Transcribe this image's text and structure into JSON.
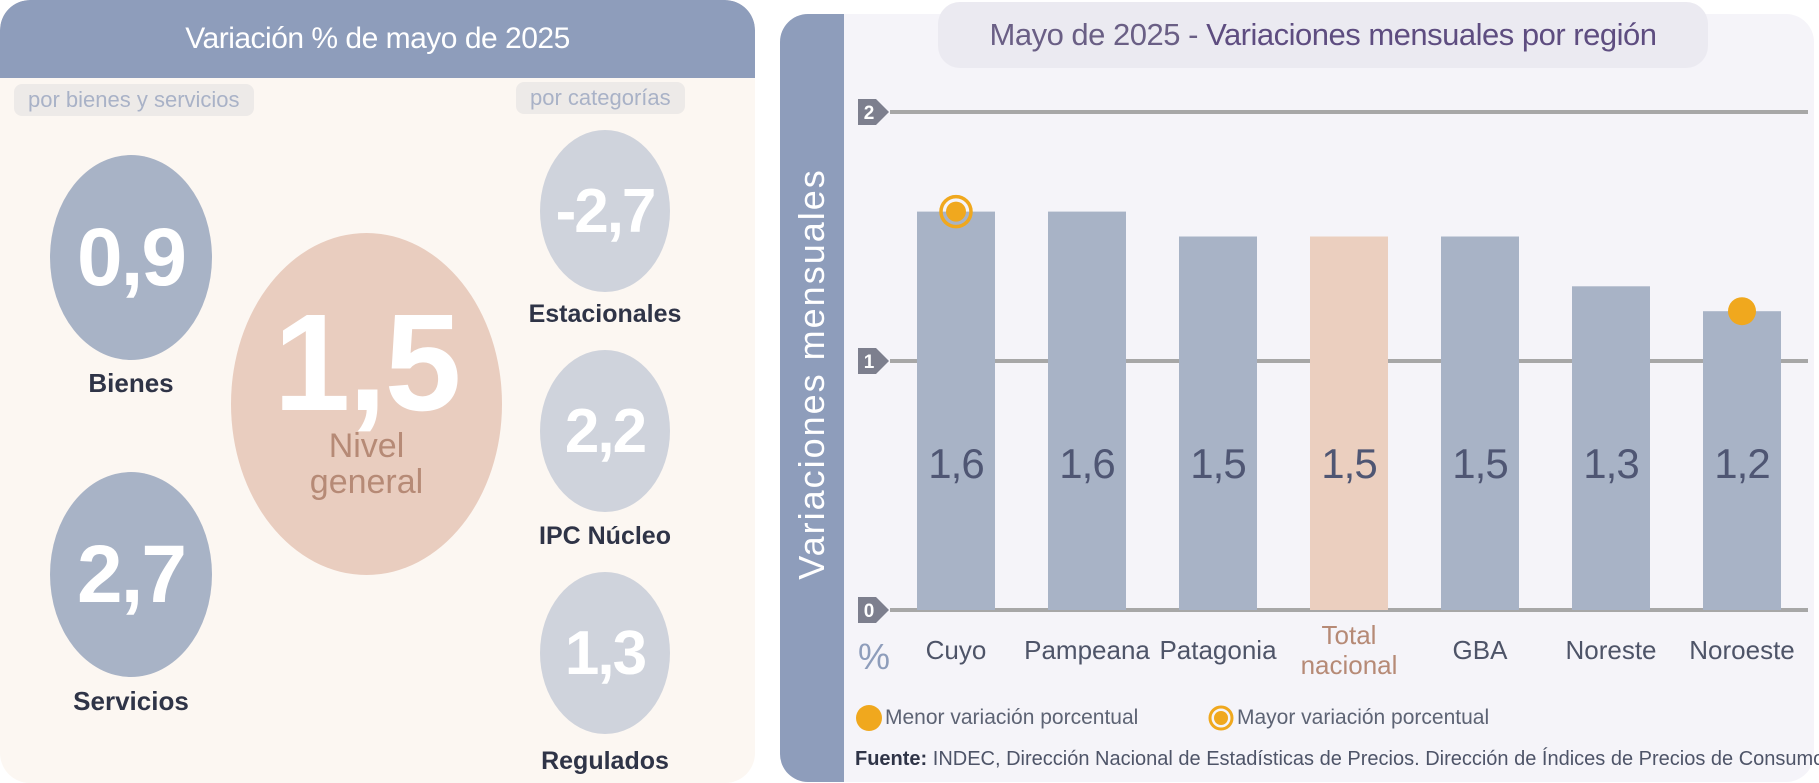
{
  "left": {
    "title": "Variación % de mayo de 2025",
    "goods_services_label": "por bienes y servicios",
    "categories_label": "por categorías",
    "items": {
      "bienes": {
        "value": "0,9",
        "label": "Bienes"
      },
      "servicios": {
        "value": "2,7",
        "label": "Servicios"
      },
      "general": {
        "value": "1,5",
        "label_line1": "Nivel",
        "label_line2": "general"
      },
      "estacionales": {
        "value": "-2,7",
        "label": "Estacionales"
      },
      "nucleo": {
        "value": "2,2",
        "label": "IPC Núcleo"
      },
      "regulados": {
        "value": "1,3",
        "label": "Regulados"
      }
    }
  },
  "right": {
    "title_part1": "Mayo de 2025",
    "title_sep": " - ",
    "title_part2": "Variaciones mensuales por región",
    "y_axis_label": "Variaciones mensuales",
    "unit": "%",
    "legend_min": "Menor variación porcentual",
    "legend_max": "Mayor variación porcentual",
    "source_bold": "Fuente:",
    "source_text": " INDEC, Dirección Nacional de Estadísticas de Precios. Dirección de Índices de Precios de Consumo."
  },
  "colors": {
    "bar": "#a8b3c6",
    "bar_highlight": "#ebcfbf",
    "marker": "#f0a81e",
    "header": "#8e9dbb"
  },
  "chart_data": {
    "type": "bar",
    "categories": [
      "Cuyo",
      "Pampeana",
      "Patagonia",
      "Total nacional",
      "GBA",
      "Noreste",
      "Noroeste"
    ],
    "category_lines": [
      [
        "Cuyo"
      ],
      [
        "Pampeana"
      ],
      [
        "Patagonia"
      ],
      [
        "Total",
        "nacional"
      ],
      [
        "GBA"
      ],
      [
        "Noreste"
      ],
      [
        "Noroeste"
      ]
    ],
    "values": [
      1.6,
      1.6,
      1.5,
      1.5,
      1.5,
      1.3,
      1.2
    ],
    "value_labels": [
      "1,6",
      "1,6",
      "1,5",
      "1,5",
      "1,5",
      "1,3",
      "1,2"
    ],
    "highlight_index": 3,
    "max_marker_index": 0,
    "min_marker_index": 6,
    "ylim": [
      0,
      2
    ],
    "yticks": [
      0,
      1,
      2
    ],
    "ylabel": "Variaciones mensuales",
    "grid": true
  }
}
